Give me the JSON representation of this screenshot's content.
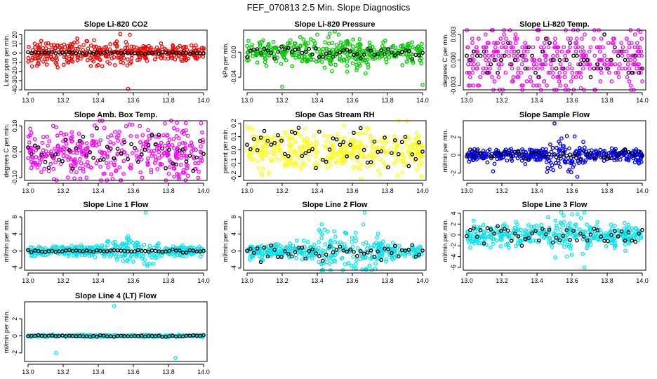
{
  "figure_title": "FEF_070813  2.5 Min. Slope Diagnostics",
  "colors": {
    "red": "#ff0000",
    "green": "#00cc00",
    "magenta": "#ff00ff",
    "yellow": "#ffff00",
    "blue": "#0000ff",
    "cyan": "#00e5ee",
    "black": "#000000"
  },
  "chart_data": [
    {
      "type": "scatter",
      "title": "Slope Li-820 CO2",
      "ylabel": "Licor ppm per min.",
      "color": "#ff0000",
      "xlim": [
        12.98,
        14.02
      ],
      "ylim": [
        -40,
        25
      ],
      "xticks": [
        "13.0",
        "13.2",
        "13.4",
        "13.6",
        "13.8",
        "14.0"
      ],
      "yticks": [
        {
          "v": -40,
          "t": "-40"
        },
        {
          "v": -30,
          "t": "-30"
        },
        {
          "v": -20,
          "t": "-20"
        },
        {
          "v": -10,
          "t": "-10"
        },
        {
          "v": 0,
          "t": "0"
        },
        {
          "v": 10,
          "t": "10"
        },
        {
          "v": 20,
          "t": "20"
        }
      ],
      "spread": 4,
      "burst_spread": 7,
      "burst": [
        13.0,
        13.62
      ],
      "black_amp": 0.6,
      "outliers": [
        [
          13.58,
          20
        ],
        [
          13.57,
          -39
        ],
        [
          13.28,
          16
        ],
        [
          13.06,
          -12
        ]
      ]
    },
    {
      "type": "scatter",
      "title": "Slope Li-820 Pressure",
      "ylabel": "kPa per min.",
      "color": "#00cc00",
      "xlim": [
        12.98,
        14.02
      ],
      "ylim": [
        -0.06,
        0.035
      ],
      "xticks": [
        "13.0",
        "13.2",
        "13.4",
        "13.6",
        "13.8",
        "14.0"
      ],
      "yticks": [
        {
          "v": -0.04,
          "t": "-0.04"
        },
        {
          "v": 0.0,
          "t": "0.00"
        }
      ],
      "spread": 0.008,
      "burst_spread": 0.012,
      "burst": [
        13.3,
        13.7
      ],
      "black_amp": 0.005,
      "outliers": [
        [
          13.5,
          0.033
        ],
        [
          13.2,
          -0.055
        ],
        [
          14.0,
          -0.052
        ],
        [
          13.11,
          -0.022
        ]
      ]
    },
    {
      "type": "scatter",
      "title": "Slope Li-820 Temp.",
      "ylabel": "degrees C per min.",
      "color": "#ff00ff",
      "xlim": [
        12.98,
        14.02
      ],
      "ylim": [
        -0.0035,
        0.0035
      ],
      "xticks": [
        "13.0",
        "13.2",
        "13.4",
        "13.6",
        "13.8",
        "14.0"
      ],
      "yticks": [
        {
          "v": -0.003,
          "t": "-0.003"
        },
        {
          "v": 0.0,
          "t": "0.000"
        },
        {
          "v": 0.003,
          "t": "0.003"
        }
      ],
      "spread": 0.0012,
      "burst_spread": 0.0018,
      "burst": [
        13.0,
        14.0
      ],
      "black_amp": 0.001,
      "quantum": 0.0005,
      "outliers": [
        [
          13.99,
          0.0033
        ],
        [
          13.65,
          -0.0033
        ]
      ]
    },
    {
      "type": "scatter",
      "title": "Slope Amb. Box Temp.",
      "ylabel": "degrees C per min.",
      "color": "#ff00ff",
      "xlim": [
        12.98,
        14.02
      ],
      "ylim": [
        -0.11,
        0.12
      ],
      "xticks": [
        "13.0",
        "13.2",
        "13.4",
        "13.6",
        "13.8",
        "14.0"
      ],
      "yticks": [
        {
          "v": -0.1,
          "t": "-0.10"
        },
        {
          "v": 0.0,
          "t": "0.00"
        },
        {
          "v": 0.1,
          "t": "0.10"
        }
      ],
      "spread": 0.045,
      "burst_spread": 0.05,
      "burst": [
        13.0,
        14.0
      ],
      "black_amp": 0.04,
      "outliers": [
        [
          13.78,
          0.11
        ],
        [
          13.65,
          -0.1
        ]
      ]
    },
    {
      "type": "scatter",
      "title": "Slope Gas Stream RH",
      "ylabel": "percent per min.",
      "color": "#ffff00",
      "xlim": [
        12.98,
        14.02
      ],
      "ylim": [
        -0.23,
        0.22
      ],
      "xticks": [
        "13.0",
        "13.2",
        "13.4",
        "13.6",
        "13.8",
        "14.0"
      ],
      "yticks": [
        {
          "v": -0.2,
          "t": "-0.2"
        },
        {
          "v": -0.1,
          "t": "-0.1"
        },
        {
          "v": 0.0,
          "t": "0.0"
        },
        {
          "v": 0.1,
          "t": "0.1"
        },
        {
          "v": 0.2,
          "t": "0.2"
        }
      ],
      "spread": 0.07,
      "burst_spread": 0.08,
      "burst": [
        13.0,
        14.0
      ],
      "black_amp": 0.08,
      "outliers": [
        [
          13.0,
          0.18
        ],
        [
          13.65,
          -0.22
        ]
      ]
    },
    {
      "type": "scatter",
      "title": "Slope Sample Flow",
      "ylabel": "ml/min per min.",
      "color": "#0000ff",
      "xlim": [
        12.98,
        14.02
      ],
      "ylim": [
        -2.8,
        3.8
      ],
      "xticks": [
        "13.0",
        "13.2",
        "13.4",
        "13.6",
        "13.8",
        "14.0"
      ],
      "yticks": [
        {
          "v": -2,
          "t": "-2"
        },
        {
          "v": 0,
          "t": "0"
        },
        {
          "v": 2,
          "t": "2"
        }
      ],
      "spread": 0.35,
      "burst_spread": 0.9,
      "burst": [
        13.45,
        13.68
      ],
      "black_amp": 0.3,
      "outliers": [
        [
          13.5,
          3.5
        ],
        [
          13.15,
          -1.8
        ],
        [
          13.63,
          -2.4
        ]
      ]
    },
    {
      "type": "scatter",
      "title": "Slope Line 1 Flow",
      "ylabel": "ml/min per min.",
      "color": "#00e5ee",
      "xlim": [
        12.98,
        14.02
      ],
      "ylim": [
        -4.5,
        9.5
      ],
      "xticks": [
        "13.0",
        "13.2",
        "13.4",
        "13.6",
        "13.8",
        "14.0"
      ],
      "yticks": [
        {
          "v": -4,
          "t": "-4"
        },
        {
          "v": 0,
          "t": "0"
        },
        {
          "v": 4,
          "t": "4"
        },
        {
          "v": 8,
          "t": "8"
        }
      ],
      "spread": 0.6,
      "burst_spread": 1.6,
      "burst": [
        13.45,
        13.75
      ],
      "black_amp": 0.15,
      "outliers": [
        [
          13.67,
          9
        ],
        [
          13.68,
          -3.5
        ],
        [
          13.6,
          -2.5
        ]
      ]
    },
    {
      "type": "scatter",
      "title": "Slope Line 2 Flow",
      "ylabel": "ml/min per min.",
      "color": "#00e5ee",
      "xlim": [
        12.98,
        14.02
      ],
      "ylim": [
        -4.5,
        9.5
      ],
      "xticks": [
        "13.0",
        "13.2",
        "13.4",
        "13.6",
        "13.8",
        "14.0"
      ],
      "yticks": [
        {
          "v": -4,
          "t": "-4"
        },
        {
          "v": 0,
          "t": "0"
        },
        {
          "v": 4,
          "t": "4"
        },
        {
          "v": 8,
          "t": "8"
        }
      ],
      "spread": 1.0,
      "burst_spread": 2.4,
      "burst": [
        13.4,
        13.75
      ],
      "black_amp": 0.9,
      "outliers": [
        [
          13.67,
          9
        ],
        [
          13.62,
          -4
        ],
        [
          13.47,
          -3
        ]
      ]
    },
    {
      "type": "scatter",
      "title": "Slope Line 3 Flow",
      "ylabel": "ml/min per min.",
      "color": "#00e5ee",
      "xlim": [
        12.98,
        14.02
      ],
      "ylim": [
        -6.5,
        4.5
      ],
      "xticks": [
        "13.0",
        "13.2",
        "13.4",
        "13.6",
        "13.8",
        "14.0"
      ],
      "yticks": [
        {
          "v": -6,
          "t": "-6"
        },
        {
          "v": -4,
          "t": "-4"
        },
        {
          "v": -2,
          "t": "-2"
        },
        {
          "v": 0,
          "t": "0"
        },
        {
          "v": 2,
          "t": "2"
        },
        {
          "v": 4,
          "t": "4"
        }
      ],
      "spread": 1.0,
      "burst_spread": 1.8,
      "burst": [
        13.45,
        13.72
      ],
      "black_amp": 1.0,
      "outliers": [
        [
          13.67,
          -6
        ],
        [
          13.6,
          3.8
        ],
        [
          13.57,
          -4
        ]
      ]
    },
    {
      "type": "scatter",
      "title": "Slope Line 4 (LT) Flow",
      "ylabel": "ml/min per min.",
      "color": "#00e5ee",
      "xlim": [
        12.98,
        14.02
      ],
      "ylim": [
        -3.0,
        4.0
      ],
      "xticks": [
        "13.0",
        "13.2",
        "13.4",
        "13.6",
        "13.8",
        "14.0"
      ],
      "yticks": [
        {
          "v": -2,
          "t": "-2"
        },
        {
          "v": 0,
          "t": "0"
        },
        {
          "v": 2,
          "t": "2"
        }
      ],
      "spread": 0.05,
      "burst_spread": 0.06,
      "burst": [
        13.0,
        14.0
      ],
      "black_amp": 0.05,
      "outliers": [
        [
          13.49,
          3.5
        ],
        [
          13.16,
          -2.0
        ],
        [
          13.84,
          -2.6
        ]
      ]
    }
  ]
}
